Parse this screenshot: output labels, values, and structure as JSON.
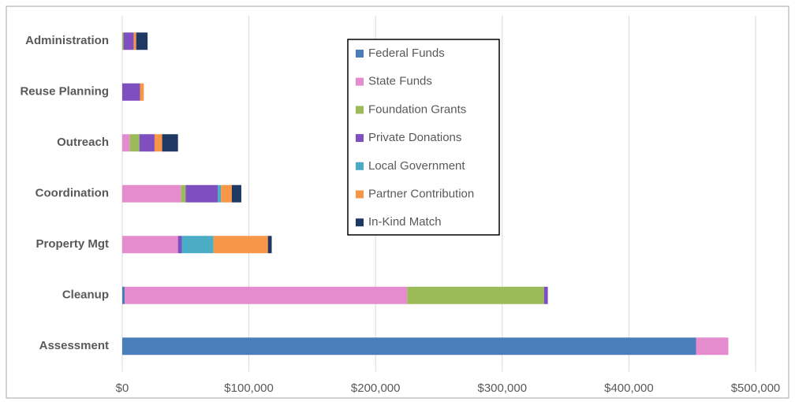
{
  "chart_data": {
    "type": "bar",
    "orientation": "horizontal",
    "stacked": true,
    "categories": [
      "Administration",
      "Reuse Planning",
      "Outreach",
      "Coordination",
      "Property Mgt",
      "Cleanup",
      "Assessment"
    ],
    "series": [
      {
        "name": "Federal Funds",
        "color": "#4a7ebb",
        "values": [
          0,
          0,
          0,
          0,
          0,
          2000,
          453000
        ]
      },
      {
        "name": "State Funds",
        "color": "#e58ccf",
        "values": [
          0,
          0,
          6000,
          46500,
          44000,
          223000,
          25500
        ]
      },
      {
        "name": "Foundation Grants",
        "color": "#9bbb59",
        "values": [
          1000,
          0,
          7500,
          3500,
          0,
          108000,
          0
        ]
      },
      {
        "name": "Private Donations",
        "color": "#7f4fbf",
        "values": [
          8000,
          14000,
          12000,
          25500,
          3000,
          3000,
          0
        ]
      },
      {
        "name": "Local Government",
        "color": "#4bacc6",
        "values": [
          0,
          0,
          0,
          2500,
          25000,
          0,
          0
        ]
      },
      {
        "name": "Partner Contribution",
        "color": "#f79646",
        "values": [
          2000,
          3000,
          6000,
          8500,
          43000,
          0,
          0
        ]
      },
      {
        "name": "In-Kind Match",
        "color": "#1f3864",
        "values": [
          9000,
          0,
          12500,
          7500,
          3000,
          0,
          0
        ]
      }
    ],
    "xlim": [
      0,
      500000
    ],
    "xticks": [
      {
        "value": 0,
        "label": "$0"
      },
      {
        "value": 100000,
        "label": "$100,000"
      },
      {
        "value": 200000,
        "label": "$200,000"
      },
      {
        "value": 300000,
        "label": "$300,000"
      },
      {
        "value": 400000,
        "label": "$400,000"
      },
      {
        "value": 500000,
        "label": "$500,000"
      }
    ],
    "grid": true,
    "legend": "top"
  }
}
